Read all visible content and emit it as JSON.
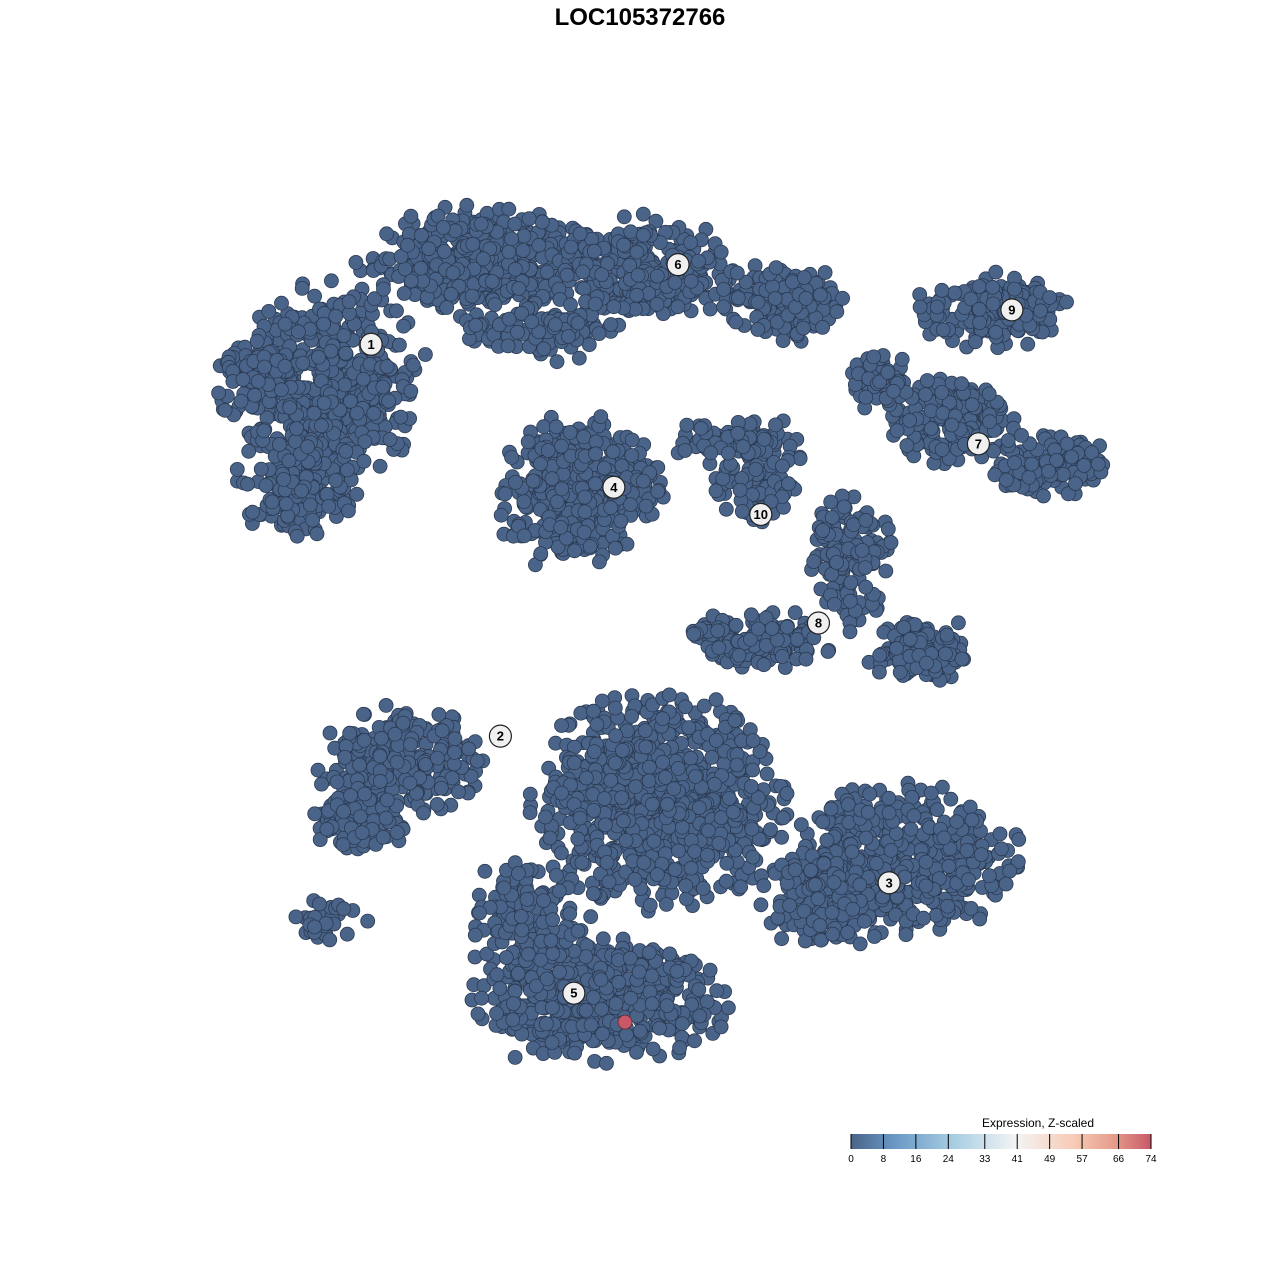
{
  "chart_data": {
    "type": "scatter",
    "title": "LOC105372766",
    "xlabel": "",
    "ylabel": "",
    "grid": false,
    "axes_visible": false,
    "point_color_default": "#4a6489",
    "clusters": [
      {
        "label": "1",
        "x": -31.6,
        "y": 32.4
      },
      {
        "label": "2",
        "x": -17.7,
        "y": -10.9
      },
      {
        "label": "3",
        "x": 24.1,
        "y": -27.1
      },
      {
        "label": "4",
        "x": -5.5,
        "y": 16.6
      },
      {
        "label": "5",
        "x": -9.8,
        "y": -39.3
      },
      {
        "label": "6",
        "x": 1.4,
        "y": 41.2
      },
      {
        "label": "7",
        "x": 33.7,
        "y": 21.4
      },
      {
        "label": "8",
        "x": 16.5,
        "y": 1.6
      },
      {
        "label": "9",
        "x": 37.3,
        "y": 36.2
      },
      {
        "label": "10",
        "x": 10.3,
        "y": 13.6
      }
    ],
    "expression_summary": "all cells at 0 except one",
    "highlighted_points": [
      {
        "x": -4.3,
        "y": -42.5,
        "value": 74,
        "cluster": "5"
      }
    ],
    "legend": {
      "title": "Expression, Z-scaled",
      "position": "bottom-right",
      "ticks": [
        "0",
        "8",
        "16",
        "24",
        "33",
        "41",
        "49",
        "57",
        "66",
        "74"
      ],
      "colors": [
        "#4a6489",
        "#6a9ac6",
        "#a9cfe3",
        "#f4f4f4",
        "#f7c9b4",
        "#e59a8a",
        "#c85868"
      ]
    }
  }
}
